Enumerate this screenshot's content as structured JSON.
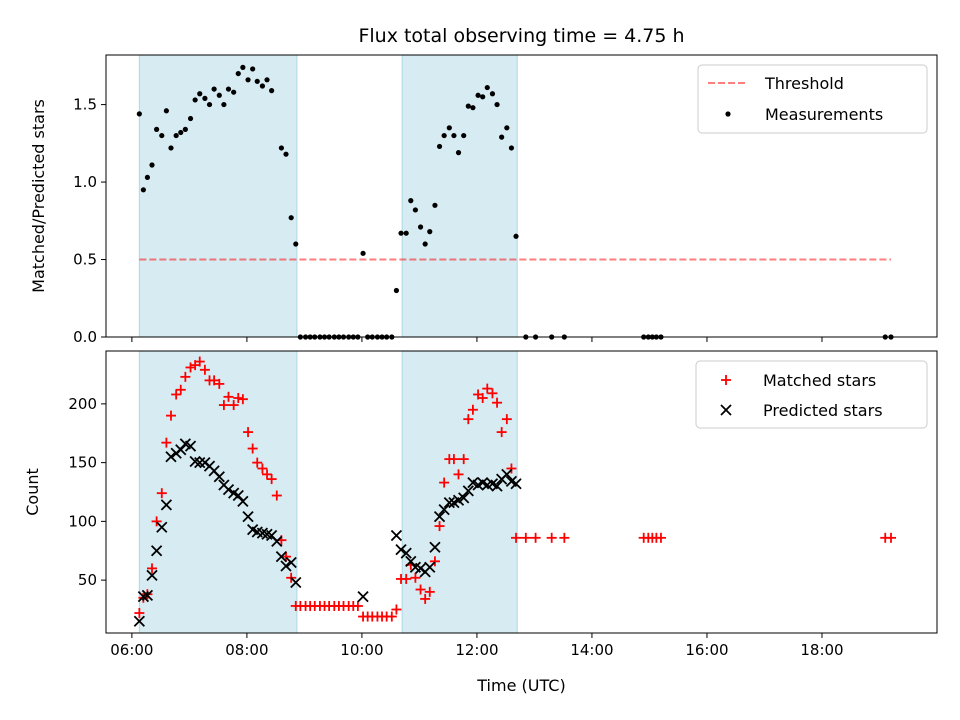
{
  "chart_data": {
    "type": "scatter",
    "title": "Flux total observing time = 4.75 h",
    "xlabel": "Time (UTC)",
    "x_ticks": [
      "06:00",
      "08:00",
      "10:00",
      "12:00",
      "14:00",
      "16:00",
      "18:00"
    ],
    "x_range_hours": [
      5.55,
      20.0
    ],
    "shaded_intervals_hours": [
      [
        6.13,
        8.87
      ],
      [
        10.7,
        12.7
      ]
    ],
    "top_panel": {
      "ylabel": "Matched/Predicted stars",
      "ylim": [
        0,
        1.82
      ],
      "y_ticks": [
        "0.0",
        "0.5",
        "1.0",
        "1.5"
      ],
      "threshold": {
        "name": "Threshold",
        "value": 0.5,
        "x_range_hours": [
          6.13,
          19.2
        ]
      },
      "measurements": {
        "name": "Measurements",
        "points": [
          [
            6.13,
            1.44
          ],
          [
            6.2,
            0.95
          ],
          [
            6.27,
            1.03
          ],
          [
            6.35,
            1.11
          ],
          [
            6.43,
            1.34
          ],
          [
            6.52,
            1.3
          ],
          [
            6.6,
            1.46
          ],
          [
            6.68,
            1.22
          ],
          [
            6.77,
            1.3
          ],
          [
            6.85,
            1.32
          ],
          [
            6.93,
            1.34
          ],
          [
            7.02,
            1.41
          ],
          [
            7.1,
            1.53
          ],
          [
            7.18,
            1.57
          ],
          [
            7.27,
            1.54
          ],
          [
            7.35,
            1.5
          ],
          [
            7.43,
            1.6
          ],
          [
            7.52,
            1.56
          ],
          [
            7.6,
            1.5
          ],
          [
            7.68,
            1.6
          ],
          [
            7.77,
            1.58
          ],
          [
            7.85,
            1.7
          ],
          [
            7.93,
            1.74
          ],
          [
            8.02,
            1.66
          ],
          [
            8.1,
            1.73
          ],
          [
            8.18,
            1.65
          ],
          [
            8.27,
            1.62
          ],
          [
            8.35,
            1.66
          ],
          [
            8.43,
            1.59
          ],
          [
            8.6,
            1.22
          ],
          [
            8.68,
            1.18
          ],
          [
            8.77,
            0.77
          ],
          [
            8.85,
            0.6
          ],
          [
            8.93,
            0.0
          ],
          [
            9.02,
            0.0
          ],
          [
            9.1,
            0.0
          ],
          [
            9.18,
            0.0
          ],
          [
            9.27,
            0.0
          ],
          [
            9.35,
            0.0
          ],
          [
            9.43,
            0.0
          ],
          [
            9.52,
            0.0
          ],
          [
            9.6,
            0.0
          ],
          [
            9.68,
            0.0
          ],
          [
            9.77,
            0.0
          ],
          [
            9.85,
            0.0
          ],
          [
            9.93,
            0.0
          ],
          [
            10.02,
            0.54
          ],
          [
            10.1,
            0.0
          ],
          [
            10.18,
            0.0
          ],
          [
            10.27,
            0.0
          ],
          [
            10.35,
            0.0
          ],
          [
            10.43,
            0.0
          ],
          [
            10.52,
            0.0
          ],
          [
            10.6,
            0.3
          ],
          [
            10.68,
            0.67
          ],
          [
            10.77,
            0.67
          ],
          [
            10.85,
            0.88
          ],
          [
            10.93,
            0.82
          ],
          [
            11.02,
            0.71
          ],
          [
            11.1,
            0.6
          ],
          [
            11.18,
            0.68
          ],
          [
            11.27,
            0.85
          ],
          [
            11.35,
            1.23
          ],
          [
            11.43,
            1.3
          ],
          [
            11.52,
            1.35
          ],
          [
            11.6,
            1.3
          ],
          [
            11.68,
            1.19
          ],
          [
            11.77,
            1.3
          ],
          [
            11.85,
            1.49
          ],
          [
            11.93,
            1.48
          ],
          [
            12.02,
            1.56
          ],
          [
            12.1,
            1.55
          ],
          [
            12.18,
            1.61
          ],
          [
            12.27,
            1.57
          ],
          [
            12.35,
            1.5
          ],
          [
            12.43,
            1.29
          ],
          [
            12.52,
            1.35
          ],
          [
            12.6,
            1.22
          ],
          [
            12.68,
            0.65
          ],
          [
            12.85,
            0.0
          ],
          [
            13.02,
            0.0
          ],
          [
            13.3,
            0.0
          ],
          [
            13.52,
            0.0
          ],
          [
            14.9,
            0.0
          ],
          [
            14.98,
            0.0
          ],
          [
            15.05,
            0.0
          ],
          [
            15.12,
            0.0
          ],
          [
            15.2,
            0.0
          ],
          [
            19.1,
            0.0
          ],
          [
            19.2,
            0.0
          ]
        ]
      }
    },
    "bottom_panel": {
      "ylabel": "Count",
      "ylim": [
        5,
        245
      ],
      "y_ticks": [
        "50",
        "100",
        "150",
        "200"
      ],
      "matched": {
        "name": "Matched stars",
        "points": [
          [
            6.13,
            22
          ],
          [
            6.2,
            35
          ],
          [
            6.27,
            38
          ],
          [
            6.35,
            60
          ],
          [
            6.43,
            100
          ],
          [
            6.52,
            124
          ],
          [
            6.6,
            167
          ],
          [
            6.68,
            190
          ],
          [
            6.77,
            208
          ],
          [
            6.85,
            212
          ],
          [
            6.93,
            223
          ],
          [
            7.02,
            231
          ],
          [
            7.1,
            233
          ],
          [
            7.18,
            236
          ],
          [
            7.27,
            229
          ],
          [
            7.35,
            220
          ],
          [
            7.43,
            220
          ],
          [
            7.52,
            217
          ],
          [
            7.6,
            199
          ],
          [
            7.68,
            206
          ],
          [
            7.77,
            199
          ],
          [
            7.85,
            205
          ],
          [
            7.93,
            204
          ],
          [
            8.02,
            176
          ],
          [
            8.1,
            162
          ],
          [
            8.18,
            150
          ],
          [
            8.27,
            145
          ],
          [
            8.35,
            140
          ],
          [
            8.43,
            136
          ],
          [
            8.52,
            122
          ],
          [
            8.6,
            84
          ],
          [
            8.68,
            70
          ],
          [
            8.77,
            52
          ],
          [
            8.85,
            28
          ],
          [
            8.93,
            28
          ],
          [
            9.02,
            28
          ],
          [
            9.1,
            28
          ],
          [
            9.18,
            28
          ],
          [
            9.27,
            28
          ],
          [
            9.35,
            28
          ],
          [
            9.43,
            28
          ],
          [
            9.52,
            28
          ],
          [
            9.6,
            28
          ],
          [
            9.68,
            28
          ],
          [
            9.77,
            28
          ],
          [
            9.85,
            28
          ],
          [
            9.93,
            28
          ],
          [
            10.02,
            19
          ],
          [
            10.1,
            19
          ],
          [
            10.18,
            19
          ],
          [
            10.27,
            19
          ],
          [
            10.35,
            19
          ],
          [
            10.43,
            19
          ],
          [
            10.52,
            19
          ],
          [
            10.6,
            25
          ],
          [
            10.68,
            51
          ],
          [
            10.77,
            51
          ],
          [
            10.85,
            63
          ],
          [
            10.93,
            52
          ],
          [
            11.02,
            42
          ],
          [
            11.1,
            34
          ],
          [
            11.18,
            40
          ],
          [
            11.27,
            66
          ],
          [
            11.35,
            96
          ],
          [
            11.43,
            133
          ],
          [
            11.52,
            153
          ],
          [
            11.6,
            153
          ],
          [
            11.68,
            140
          ],
          [
            11.77,
            153
          ],
          [
            11.85,
            187
          ],
          [
            11.93,
            195
          ],
          [
            12.02,
            208
          ],
          [
            12.1,
            205
          ],
          [
            12.18,
            213
          ],
          [
            12.27,
            209
          ],
          [
            12.35,
            201
          ],
          [
            12.43,
            176
          ],
          [
            12.52,
            187
          ],
          [
            12.6,
            145
          ],
          [
            12.68,
            86
          ],
          [
            12.85,
            86
          ],
          [
            13.02,
            86
          ],
          [
            13.3,
            86
          ],
          [
            13.52,
            86
          ],
          [
            14.9,
            86
          ],
          [
            14.98,
            86
          ],
          [
            15.05,
            86
          ],
          [
            15.12,
            86
          ],
          [
            15.2,
            86
          ],
          [
            19.1,
            86
          ],
          [
            19.2,
            86
          ]
        ]
      },
      "predicted": {
        "name": "Predicted stars",
        "points": [
          [
            6.13,
            15
          ],
          [
            6.2,
            36
          ],
          [
            6.27,
            37
          ],
          [
            6.35,
            54
          ],
          [
            6.43,
            75
          ],
          [
            6.52,
            95
          ],
          [
            6.6,
            114
          ],
          [
            6.68,
            155
          ],
          [
            6.77,
            158
          ],
          [
            6.85,
            161
          ],
          [
            6.93,
            166
          ],
          [
            7.02,
            164
          ],
          [
            7.1,
            151
          ],
          [
            7.18,
            150
          ],
          [
            7.27,
            150
          ],
          [
            7.35,
            147
          ],
          [
            7.43,
            143
          ],
          [
            7.52,
            138
          ],
          [
            7.6,
            131
          ],
          [
            7.68,
            127
          ],
          [
            7.77,
            124
          ],
          [
            7.85,
            122
          ],
          [
            7.93,
            117
          ],
          [
            8.02,
            104
          ],
          [
            8.1,
            93
          ],
          [
            8.18,
            91
          ],
          [
            8.27,
            90
          ],
          [
            8.35,
            89
          ],
          [
            8.43,
            88
          ],
          [
            8.52,
            83
          ],
          [
            8.6,
            70
          ],
          [
            8.68,
            62
          ],
          [
            8.77,
            65
          ],
          [
            8.85,
            48
          ],
          [
            10.02,
            36
          ],
          [
            10.6,
            88
          ],
          [
            10.68,
            76
          ],
          [
            10.77,
            73
          ],
          [
            10.85,
            66
          ],
          [
            10.93,
            61
          ],
          [
            11.02,
            60
          ],
          [
            11.1,
            57
          ],
          [
            11.18,
            61
          ],
          [
            11.27,
            78
          ],
          [
            11.35,
            104
          ],
          [
            11.43,
            110
          ],
          [
            11.52,
            116
          ],
          [
            11.6,
            116
          ],
          [
            11.68,
            118
          ],
          [
            11.77,
            120
          ],
          [
            11.85,
            126
          ],
          [
            11.93,
            133
          ],
          [
            12.02,
            131
          ],
          [
            12.1,
            133
          ],
          [
            12.18,
            131
          ],
          [
            12.27,
            132
          ],
          [
            12.35,
            130
          ],
          [
            12.43,
            136
          ],
          [
            12.52,
            140
          ],
          [
            12.6,
            134
          ],
          [
            12.68,
            132
          ]
        ]
      }
    }
  }
}
